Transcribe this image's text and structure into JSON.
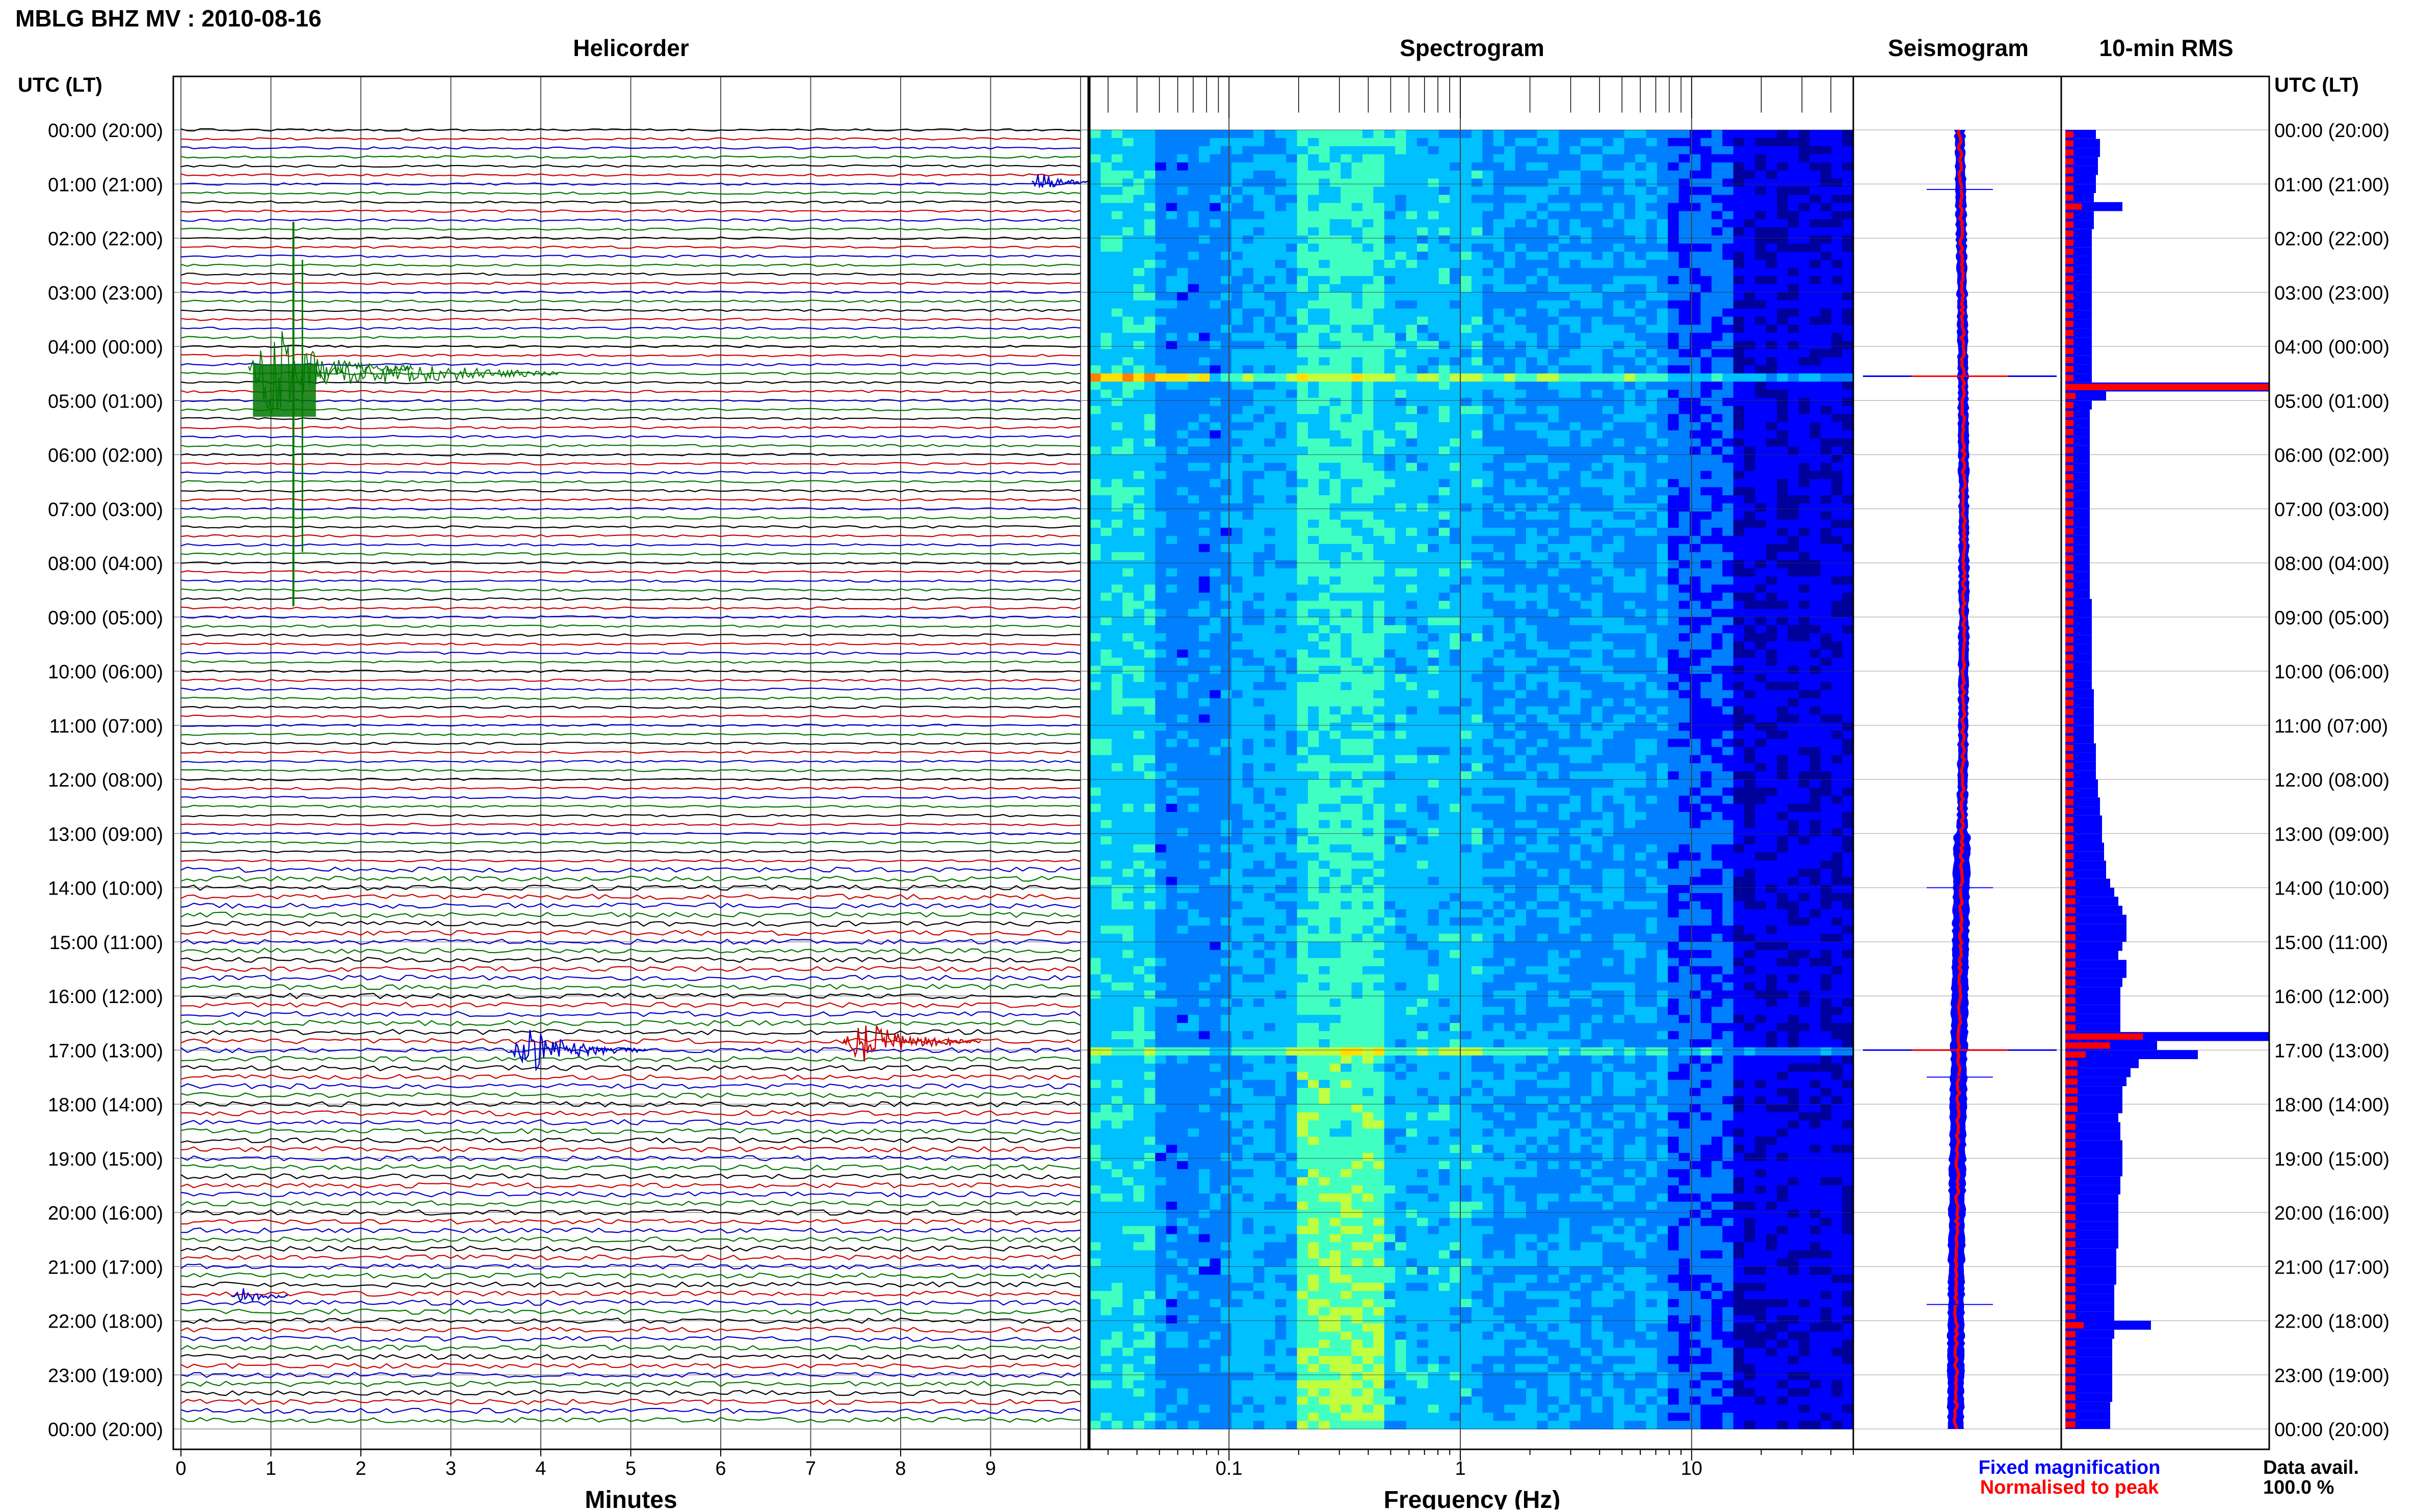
{
  "header": {
    "title": "MBLG BHZ MV : 2010-08-16"
  },
  "panels": {
    "helicorder": "Helicorder",
    "spectrogram": "Spectrogram",
    "seismogram": "Seismogram",
    "rms": "10-min RMS"
  },
  "time_axis": {
    "label": "UTC (LT)",
    "ticks": [
      "00:00 (20:00)",
      "01:00 (21:00)",
      "02:00 (22:00)",
      "03:00 (23:00)",
      "04:00 (00:00)",
      "05:00 (01:00)",
      "06:00 (02:00)",
      "07:00 (03:00)",
      "08:00 (04:00)",
      "09:00 (05:00)",
      "10:00 (06:00)",
      "11:00 (07:00)",
      "12:00 (08:00)",
      "13:00 (09:00)",
      "14:00 (10:00)",
      "15:00 (11:00)",
      "16:00 (12:00)",
      "17:00 (13:00)",
      "18:00 (14:00)",
      "19:00 (15:00)",
      "20:00 (16:00)",
      "21:00 (17:00)",
      "22:00 (18:00)",
      "23:00 (19:00)",
      "00:00 (20:00)"
    ]
  },
  "legend": {
    "fixed": "Fixed magnification",
    "normalised": "Normalised to peak",
    "fixed_color": "#0000ff",
    "normalised_color": "#ff0000"
  },
  "data_avail": {
    "label": "Data avail.",
    "value": "100.0 %"
  },
  "chart_data": [
    {
      "type": "line",
      "panel": "helicorder",
      "xlabel": "Minutes",
      "xlim": [
        0,
        10
      ],
      "xticks": [
        "0",
        "1",
        "2",
        "3",
        "4",
        "5",
        "6",
        "7",
        "8",
        "9"
      ],
      "rows_per_hour": 6,
      "trace_colors": [
        "#000000",
        "#cc0000",
        "#0000cc",
        "#007700"
      ],
      "grid": true,
      "events": [
        {
          "start_hour": 3.2,
          "end_hour": 5.6,
          "minute": 1.2,
          "amplitude": "very large",
          "color": "#007700"
        },
        {
          "start_hour": 0.95,
          "end_hour": 0.98,
          "minute": 9.6,
          "amplitude": "small",
          "color": "#0000cc"
        },
        {
          "start_hour": 16.8,
          "end_hour": 17.2,
          "minute": 3.8,
          "amplitude": "medium",
          "color": "#0000cc"
        },
        {
          "start_hour": 16.7,
          "end_hour": 17.0,
          "minute": 7.5,
          "amplitude": "medium",
          "color": "#cc0000"
        },
        {
          "start_hour": 21.5,
          "end_hour": 21.6,
          "minute": 0.7,
          "amplitude": "small",
          "color": "#0000cc"
        }
      ]
    },
    {
      "type": "heatmap",
      "panel": "spectrogram",
      "xlabel": "Frequency (Hz)",
      "xscale": "log",
      "xlim": [
        0.025,
        50
      ],
      "xticks": [
        "0.1",
        "1",
        "10"
      ],
      "ylim": [
        0,
        24
      ],
      "colormap": [
        "#00009a",
        "#0000ff",
        "#0080ff",
        "#00c0ff",
        "#40ffc0",
        "#c0ff40",
        "#ffe000",
        "#ff8000"
      ],
      "notes_hours": [
        4.5,
        17.0
      ]
    },
    {
      "type": "line",
      "panel": "seismogram",
      "ylim": [
        0,
        24
      ],
      "series": [
        {
          "name": "Fixed magnification",
          "color": "#0000ff"
        },
        {
          "name": "Normalised to peak",
          "color": "#ff0000"
        }
      ],
      "spikes_hours": [
        1.1,
        4.55,
        14.0,
        17.0,
        17.5,
        21.7
      ]
    },
    {
      "type": "bar",
      "panel": "rms",
      "orientation": "horizontal",
      "ylim": [
        0,
        24
      ],
      "bins_per_hour": 6,
      "series": [
        {
          "name": "Fixed magnification",
          "color": "#0000ff",
          "values": [
            0.15,
            0.17,
            0.17,
            0.16,
            0.16,
            0.15,
            0.15,
            0.14,
            0.28,
            0.14,
            0.14,
            0.13,
            0.13,
            0.13,
            0.13,
            0.13,
            0.13,
            0.13,
            0.13,
            0.13,
            0.13,
            0.13,
            0.13,
            0.13,
            0.13,
            0.13,
            0.13,
            0.13,
            1.0,
            0.2,
            0.13,
            0.12,
            0.12,
            0.12,
            0.12,
            0.12,
            0.12,
            0.12,
            0.12,
            0.12,
            0.12,
            0.12,
            0.12,
            0.12,
            0.12,
            0.12,
            0.12,
            0.12,
            0.12,
            0.12,
            0.12,
            0.12,
            0.13,
            0.13,
            0.13,
            0.13,
            0.13,
            0.13,
            0.13,
            0.13,
            0.13,
            0.13,
            0.14,
            0.14,
            0.14,
            0.14,
            0.14,
            0.14,
            0.15,
            0.15,
            0.15,
            0.15,
            0.16,
            0.16,
            0.17,
            0.17,
            0.18,
            0.18,
            0.18,
            0.19,
            0.19,
            0.2,
            0.2,
            0.22,
            0.24,
            0.26,
            0.28,
            0.3,
            0.3,
            0.3,
            0.28,
            0.26,
            0.3,
            0.3,
            0.28,
            0.27,
            0.27,
            0.27,
            0.27,
            0.27,
            1.0,
            0.45,
            0.65,
            0.36,
            0.32,
            0.3,
            0.28,
            0.28,
            0.28,
            0.26,
            0.27,
            0.27,
            0.28,
            0.28,
            0.28,
            0.28,
            0.27,
            0.27,
            0.26,
            0.26,
            0.26,
            0.26,
            0.26,
            0.26,
            0.25,
            0.25,
            0.25,
            0.25,
            0.24,
            0.24,
            0.24,
            0.24,
            0.42,
            0.24,
            0.23,
            0.23,
            0.23,
            0.23,
            0.23,
            0.23,
            0.23,
            0.22,
            0.22,
            0.22
          ]
        },
        {
          "name": "Normalised to peak",
          "color": "#ff0000",
          "values": [
            0.04,
            0.04,
            0.04,
            0.04,
            0.04,
            0.04,
            0.04,
            0.04,
            0.08,
            0.04,
            0.04,
            0.04,
            0.04,
            0.04,
            0.04,
            0.04,
            0.04,
            0.04,
            0.04,
            0.04,
            0.04,
            0.04,
            0.04,
            0.04,
            0.04,
            0.04,
            0.04,
            0.04,
            1.0,
            0.05,
            0.04,
            0.04,
            0.04,
            0.04,
            0.04,
            0.04,
            0.04,
            0.04,
            0.04,
            0.04,
            0.04,
            0.04,
            0.04,
            0.04,
            0.04,
            0.04,
            0.04,
            0.04,
            0.04,
            0.04,
            0.04,
            0.04,
            0.04,
            0.04,
            0.04,
            0.04,
            0.04,
            0.04,
            0.04,
            0.04,
            0.04,
            0.04,
            0.04,
            0.04,
            0.04,
            0.04,
            0.04,
            0.04,
            0.04,
            0.04,
            0.04,
            0.04,
            0.04,
            0.04,
            0.04,
            0.04,
            0.04,
            0.04,
            0.04,
            0.04,
            0.04,
            0.04,
            0.04,
            0.05,
            0.05,
            0.05,
            0.05,
            0.05,
            0.05,
            0.05,
            0.05,
            0.05,
            0.05,
            0.05,
            0.05,
            0.05,
            0.05,
            0.05,
            0.05,
            0.05,
            0.38,
            0.22,
            0.1,
            0.06,
            0.06,
            0.06,
            0.06,
            0.06,
            0.06,
            0.05,
            0.05,
            0.05,
            0.05,
            0.05,
            0.05,
            0.05,
            0.05,
            0.05,
            0.05,
            0.05,
            0.05,
            0.05,
            0.05,
            0.05,
            0.05,
            0.05,
            0.05,
            0.05,
            0.05,
            0.05,
            0.05,
            0.05,
            0.09,
            0.05,
            0.05,
            0.05,
            0.05,
            0.05,
            0.05,
            0.05,
            0.05,
            0.05,
            0.05,
            0.05
          ]
        }
      ]
    }
  ]
}
